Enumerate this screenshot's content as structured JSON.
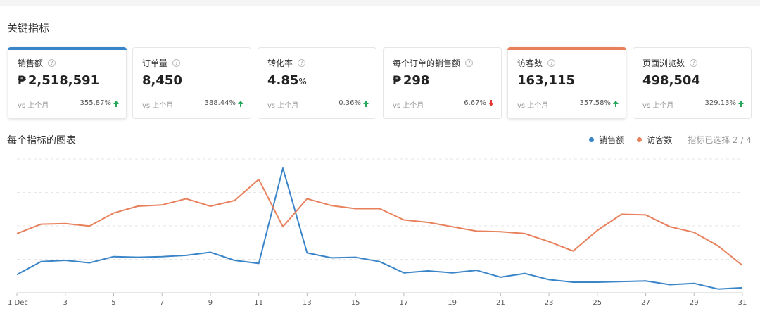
{
  "section_title": "关键指标",
  "cards": [
    {
      "label": "销售额",
      "prefix": "₱",
      "value": "2,518,591",
      "unit": "",
      "compare": "vs 上个月",
      "change": "355.87%",
      "direction": "up",
      "accent": "#3a84c8",
      "selected": true
    },
    {
      "label": "订单量",
      "prefix": "",
      "value": "8,450",
      "unit": "",
      "compare": "vs 上个月",
      "change": "388.44%",
      "direction": "up",
      "accent": "",
      "selected": false
    },
    {
      "label": "转化率",
      "prefix": "",
      "value": "4.85",
      "unit": "%",
      "compare": "vs 上个月",
      "change": "0.36%",
      "direction": "up",
      "accent": "",
      "selected": false
    },
    {
      "label": "每个订单的销售额",
      "prefix": "₱",
      "value": "298",
      "unit": "",
      "compare": "vs 上个月",
      "change": "6.67%",
      "direction": "down",
      "accent": "",
      "selected": false
    },
    {
      "label": "访客数",
      "prefix": "",
      "value": "163,115",
      "unit": "",
      "compare": "vs 上个月",
      "change": "357.58%",
      "direction": "up",
      "accent": "#e8805c",
      "selected": true
    },
    {
      "label": "页面浏览数",
      "prefix": "",
      "value": "498,504",
      "unit": "",
      "compare": "vs 上个月",
      "change": "329.13%",
      "direction": "up",
      "accent": "",
      "selected": false
    }
  ],
  "chart_section": {
    "title": "每个指标的图表",
    "legend_counter": "指标已选择 2 / 4"
  },
  "colors": {
    "sales": "#3a84c8",
    "visitors": "#e8805c",
    "up": "#26a65b",
    "down": "#e53935"
  },
  "chart_data": {
    "type": "line",
    "x": [
      1,
      2,
      3,
      4,
      5,
      6,
      7,
      8,
      9,
      10,
      11,
      12,
      13,
      14,
      15,
      16,
      17,
      18,
      19,
      20,
      21,
      22,
      23,
      24,
      25,
      26,
      27,
      28,
      29,
      30,
      31
    ],
    "x_tick_labels": [
      "1 Dec",
      "3",
      "5",
      "7",
      "9",
      "11",
      "13",
      "15",
      "17",
      "19",
      "21",
      "23",
      "25",
      "27",
      "29",
      "31"
    ],
    "x_tick_values": [
      1,
      3,
      5,
      7,
      9,
      11,
      13,
      15,
      17,
      19,
      21,
      23,
      25,
      27,
      29,
      31
    ],
    "ylim": [
      0,
      200
    ],
    "grid": true,
    "legend_position": "top-right",
    "series": [
      {
        "name": "销售额",
        "color": "#3a84c8",
        "values": [
          29,
          50,
          52,
          48,
          58,
          57,
          58,
          60,
          65,
          52,
          47,
          200,
          64,
          56,
          57,
          50,
          32,
          35,
          32,
          36,
          25,
          31,
          21,
          17,
          17,
          18,
          19,
          13,
          15,
          6,
          8
        ]
      },
      {
        "name": "访客数",
        "color": "#e8805c",
        "values": [
          95,
          110,
          111,
          107,
          128,
          139,
          141,
          151,
          139,
          148,
          182,
          106,
          151,
          140,
          135,
          135,
          117,
          113,
          106,
          99,
          98,
          95,
          82,
          67,
          100,
          126,
          125,
          106,
          97,
          75,
          44
        ]
      }
    ]
  }
}
